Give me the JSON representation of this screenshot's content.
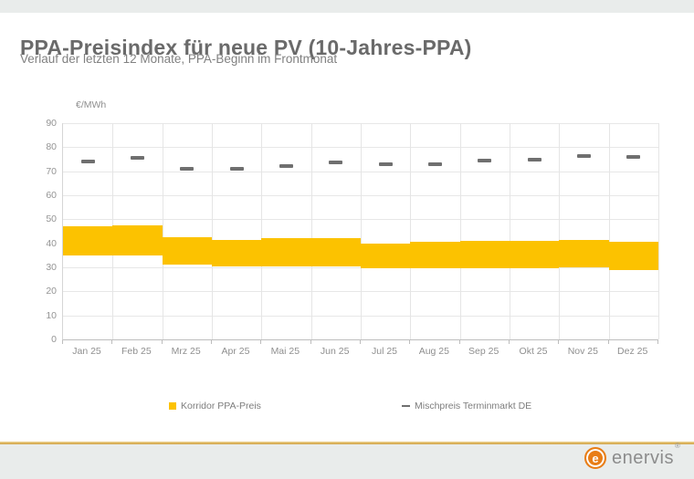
{
  "header": {
    "title": "PPA-Preisindex für neue PV (10-Jahres-PPA)",
    "subtitle": "Verlauf der letzten 12 Monate, PPA-Beginn im Frontmonat"
  },
  "chart_data": {
    "type": "bar",
    "subtype": "floating range bars with dash markers",
    "title": "PPA-Preisindex für neue PV (10-Jahres-PPA)",
    "ylabel": "€/MWh",
    "ylim": [
      0,
      90
    ],
    "ytick_step": 10,
    "grid": true,
    "legend_position": "bottom",
    "categories": [
      "Jan 25",
      "Feb 25",
      "Mrz 25",
      "Apr 25",
      "Mai 25",
      "Jun 25",
      "Jul 25",
      "Aug 25",
      "Sep 25",
      "Okt 25",
      "Nov 25",
      "Dez 25"
    ],
    "series": [
      {
        "name": "Korridor PPA-Preis",
        "type": "range-bar",
        "color": "#FCC200",
        "low": [
          35,
          35,
          31,
          30.5,
          30.5,
          30.5,
          29.5,
          29.5,
          29.5,
          29.5,
          30,
          29
        ],
        "high": [
          47,
          47.5,
          42.5,
          41.5,
          42,
          42,
          40,
          40.5,
          41,
          41,
          41.5,
          40.5
        ]
      },
      {
        "name": "Mischpreis Terminmarkt DE",
        "type": "dash-marker",
        "color": "#6F6F6F",
        "values": [
          74,
          75.5,
          71,
          71,
          72,
          73.5,
          73,
          73,
          74.5,
          75,
          76.5,
          76
        ]
      }
    ]
  },
  "legend": {
    "items": [
      {
        "label": "Korridor PPA-Preis",
        "marker": "square",
        "color": "#FCC200"
      },
      {
        "label": "Mischpreis Terminmarkt DE",
        "marker": "dash",
        "color": "#6F6F6F"
      }
    ]
  },
  "footer": {
    "brand": "enervis",
    "brand_mark": "e",
    "registered": "®"
  },
  "colors": {
    "accent_yellow": "#FCC200",
    "dash_gray": "#6F6F6F",
    "band_gray": "#E9ECEB",
    "gold_line": "#CF9F3E",
    "logo_orange": "#E87D16"
  }
}
